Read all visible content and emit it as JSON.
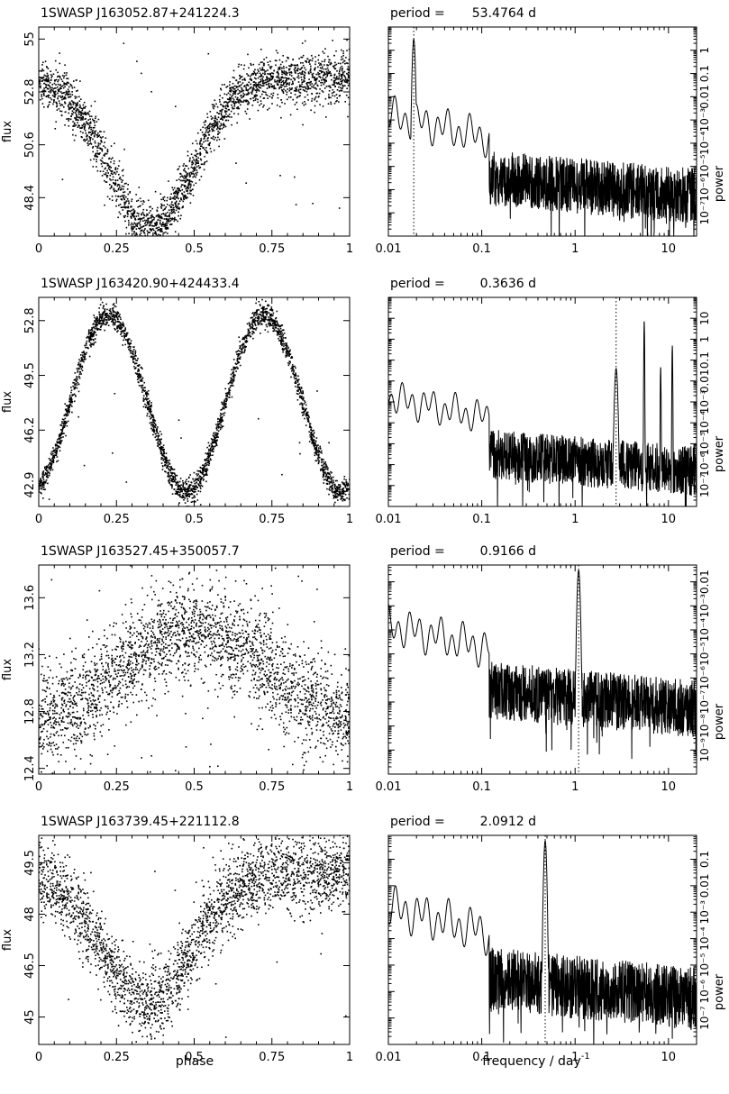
{
  "figure": {
    "xlabel_phase": "phase",
    "xlabel_freq_main": "frequency / day",
    "xlabel_freq_exp": "-1"
  },
  "chart_data": [
    {
      "type": "scatter",
      "star": "1SWASP J163052.87+241224.3",
      "xlabel": "phase",
      "ylabel": "flux",
      "xlim": [
        0,
        1
      ],
      "ylim": [
        46.8,
        55.5
      ],
      "xticks": [
        "0",
        "0.25",
        "0.5",
        "0.75",
        "1"
      ],
      "yticks": [
        {
          "v": 48.4,
          "label": "48.4"
        },
        {
          "v": 50.6,
          "label": "50.6"
        },
        {
          "v": 52.8,
          "label": "52.8"
        },
        {
          "v": 55.0,
          "label": "55"
        }
      ],
      "shape": "dip",
      "baseline": 53.4,
      "amplitude": 6.3,
      "center": 0.36,
      "width": 0.19,
      "noise": 0.5,
      "outliers": 0.01
    },
    {
      "type": "line",
      "period_label": "period =",
      "period_value": "53.4764 d",
      "period_days": 53.4764,
      "xlabel": "frequency / day-1",
      "ylabel": "power",
      "xscale": "log",
      "yscale": "log",
      "xlim": [
        0.01,
        20
      ],
      "ylim": [
        1e-08,
        10
      ],
      "xticks": [
        "0.01",
        "0.1",
        "1",
        "10"
      ],
      "yticks": [
        {
          "v": 1e-07,
          "label": "10⁻⁷"
        },
        {
          "v": 1e-06,
          "label": "10⁻⁶"
        },
        {
          "v": 1e-05,
          "label": "10⁻⁵"
        },
        {
          "v": 0.0001,
          "label": "10⁻⁴"
        },
        {
          "v": 0.001,
          "label": "10⁻³"
        },
        {
          "v": 0.01,
          "label": "0.01"
        },
        {
          "v": 0.1,
          "label": "0.1"
        },
        {
          "v": 1,
          "label": "1"
        }
      ],
      "peak_power": 3,
      "noise_power": 1e-05,
      "extra_peaks": []
    },
    {
      "type": "scatter",
      "star": "1SWASP J163420.90+424433.4",
      "xlabel": "phase",
      "ylabel": "flux",
      "xlim": [
        0,
        1
      ],
      "ylim": [
        41.6,
        54.2
      ],
      "xticks": [
        "0",
        "0.25",
        "0.5",
        "0.75",
        "1"
      ],
      "yticks": [
        {
          "v": 42.9,
          "label": "42.9"
        },
        {
          "v": 46.2,
          "label": "46.2"
        },
        {
          "v": 49.5,
          "label": "49.5"
        },
        {
          "v": 52.8,
          "label": "52.8"
        }
      ],
      "shape": "double",
      "mean": 47.8,
      "amplitude": 5.3,
      "noise": 0.35,
      "outliers": 0.004
    },
    {
      "type": "line",
      "period_label": "period =",
      "period_value": "0.3636 d",
      "period_days": 0.3636,
      "xlabel": "frequency / day-1",
      "ylabel": "power",
      "xscale": "log",
      "yscale": "log",
      "xlim": [
        0.01,
        20
      ],
      "ylim": [
        1e-08,
        100
      ],
      "xticks": [
        "0.01",
        "0.1",
        "1",
        "10"
      ],
      "yticks": [
        {
          "v": 1e-07,
          "label": "10⁻⁷"
        },
        {
          "v": 1e-06,
          "label": "10⁻⁶"
        },
        {
          "v": 1e-05,
          "label": "10⁻⁵"
        },
        {
          "v": 0.0001,
          "label": "10⁻⁴"
        },
        {
          "v": 0.001,
          "label": "10⁻³"
        },
        {
          "v": 0.01,
          "label": "0.01"
        },
        {
          "v": 0.1,
          "label": "0.1"
        },
        {
          "v": 1,
          "label": "1"
        },
        {
          "v": 10,
          "label": "10"
        }
      ],
      "peak_power": 0.04,
      "noise_power": 1e-05,
      "extra_peaks": [
        {
          "f": 5.5,
          "p": 8
        },
        {
          "f": 11.0,
          "p": 0.5
        },
        {
          "f": 8.25,
          "p": 0.05
        }
      ]
    },
    {
      "type": "scatter",
      "star": "1SWASP J163527.45+350057.7",
      "xlabel": "phase",
      "ylabel": "flux",
      "xlim": [
        0,
        1
      ],
      "ylim": [
        12.36,
        13.83
      ],
      "xticks": [
        "0",
        "0.25",
        "0.5",
        "0.75",
        "1"
      ],
      "yticks": [
        {
          "v": 12.4,
          "label": "12.4"
        },
        {
          "v": 12.8,
          "label": "12.8"
        },
        {
          "v": 13.2,
          "label": "13.2"
        },
        {
          "v": 13.6,
          "label": "13.6"
        }
      ],
      "shape": "sine",
      "mean": 13.07,
      "amplitude": 0.3,
      "peak": 0.5,
      "noise": 0.17,
      "outliers": 0.03
    },
    {
      "type": "line",
      "period_label": "period =",
      "period_value": "0.9166 d",
      "period_days": 0.9166,
      "xlabel": "frequency / day-1",
      "ylabel": "power",
      "xscale": "log",
      "yscale": "log",
      "xlim": [
        0.01,
        20
      ],
      "ylim": [
        1e-10,
        0.05
      ],
      "xticks": [
        "0.01",
        "0.1",
        "1",
        "10"
      ],
      "yticks": [
        {
          "v": 1e-09,
          "label": "10⁻⁹"
        },
        {
          "v": 1e-08,
          "label": "10⁻⁸"
        },
        {
          "v": 1e-07,
          "label": "10⁻⁷"
        },
        {
          "v": 1e-06,
          "label": "10⁻⁶"
        },
        {
          "v": 1e-05,
          "label": "10⁻⁵"
        },
        {
          "v": 0.0001,
          "label": "10⁻⁴"
        },
        {
          "v": 0.001,
          "label": "10⁻³"
        },
        {
          "v": 0.01,
          "label": "0.01"
        }
      ],
      "peak_power": 0.03,
      "noise_power": 1e-06,
      "extra_peaks": []
    },
    {
      "type": "scatter",
      "star": "1SWASP J163739.45+221112.8",
      "xlabel": "phase",
      "ylabel": "flux",
      "xlim": [
        0,
        1
      ],
      "ylim": [
        44.2,
        50.3
      ],
      "xticks": [
        "0",
        "0.25",
        "0.5",
        "0.75",
        "1"
      ],
      "yticks": [
        {
          "v": 45.0,
          "label": "45"
        },
        {
          "v": 46.5,
          "label": "46.5"
        },
        {
          "v": 48.0,
          "label": "48"
        },
        {
          "v": 49.5,
          "label": "49.5"
        }
      ],
      "shape": "dip",
      "baseline": 49.2,
      "amplitude": 3.8,
      "center": 0.35,
      "width": 0.2,
      "noise": 0.55,
      "outliers": 0.01
    },
    {
      "type": "line",
      "period_label": "period =",
      "period_value": "2.0912 d",
      "period_days": 2.0912,
      "xlabel": "frequency / day-1",
      "ylabel": "power",
      "xscale": "log",
      "yscale": "log",
      "xlim": [
        0.01,
        20
      ],
      "ylim": [
        1e-08,
        0.8
      ],
      "xticks": [
        "0.01",
        "0.1",
        "1",
        "10"
      ],
      "yticks": [
        {
          "v": 1e-07,
          "label": "10⁻⁷"
        },
        {
          "v": 1e-06,
          "label": "10⁻⁶"
        },
        {
          "v": 1e-05,
          "label": "10⁻⁵"
        },
        {
          "v": 0.0001,
          "label": "10⁻⁴"
        },
        {
          "v": 0.001,
          "label": "10⁻³"
        },
        {
          "v": 0.01,
          "label": "0.01"
        },
        {
          "v": 0.1,
          "label": "0.1"
        }
      ],
      "peak_power": 0.5,
      "noise_power": 1e-05,
      "extra_peaks": []
    }
  ]
}
